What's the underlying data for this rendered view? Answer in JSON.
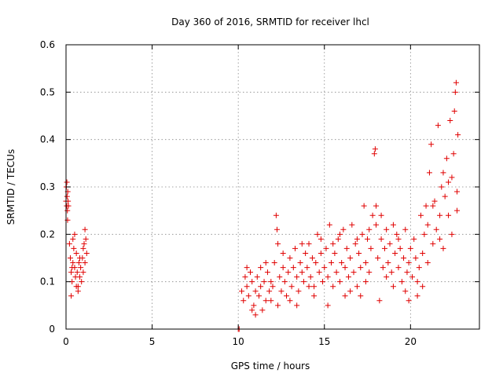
{
  "chart_data": {
    "type": "scatter",
    "title": "Day 360 of 2016, SRMTID for receiver lhcl",
    "xlabel": "GPS time / hours",
    "ylabel": "SRMTID / TECUs",
    "xlim": [
      0,
      24
    ],
    "ylim": [
      0,
      0.6
    ],
    "xticks": [
      0,
      5,
      10,
      15,
      20
    ],
    "xtick_labels": [
      "0",
      "5",
      "10",
      "15",
      "20"
    ],
    "yticks": [
      0,
      0.1,
      0.2,
      0.3,
      0.4,
      0.5,
      0.6
    ],
    "ytick_labels": [
      "0",
      "0.1",
      "0.2",
      "0.3",
      "0.4",
      "0.5",
      "0.6"
    ],
    "grid": true,
    "marker": "+",
    "series": [
      {
        "name": "SRMTID",
        "color": "#e00000",
        "points": [
          [
            0.0,
            0.27
          ],
          [
            0.02,
            0.3
          ],
          [
            0.04,
            0.26
          ],
          [
            0.06,
            0.28
          ],
          [
            0.08,
            0.25
          ],
          [
            0.1,
            0.29
          ],
          [
            0.12,
            0.27
          ],
          [
            0.14,
            0.26
          ],
          [
            0.05,
            0.31
          ],
          [
            0.09,
            0.23
          ],
          [
            0.2,
            0.18
          ],
          [
            0.25,
            0.15
          ],
          [
            0.3,
            0.12
          ],
          [
            0.35,
            0.1
          ],
          [
            0.4,
            0.14
          ],
          [
            0.45,
            0.17
          ],
          [
            0.5,
            0.13
          ],
          [
            0.55,
            0.11
          ],
          [
            0.6,
            0.16
          ],
          [
            0.65,
            0.12
          ],
          [
            0.7,
            0.09
          ],
          [
            0.75,
            0.14
          ],
          [
            0.8,
            0.11
          ],
          [
            0.85,
            0.13
          ],
          [
            0.9,
            0.1
          ],
          [
            0.95,
            0.15
          ],
          [
            1.0,
            0.12
          ],
          [
            1.05,
            0.18
          ],
          [
            1.1,
            0.21
          ],
          [
            1.15,
            0.19
          ],
          [
            1.2,
            0.16
          ],
          [
            0.3,
            0.07
          ],
          [
            0.5,
            0.2
          ],
          [
            0.7,
            0.08
          ],
          [
            1.0,
            0.17
          ],
          [
            0.4,
            0.19
          ],
          [
            0.6,
            0.09
          ],
          [
            0.8,
            0.15
          ],
          [
            1.1,
            0.14
          ],
          [
            0.35,
            0.13
          ],
          [
            10.0,
            0.0
          ],
          [
            10.05,
            0.0
          ],
          [
            10.2,
            0.08
          ],
          [
            10.3,
            0.06
          ],
          [
            10.4,
            0.11
          ],
          [
            10.5,
            0.09
          ],
          [
            10.6,
            0.07
          ],
          [
            10.7,
            0.12
          ],
          [
            10.8,
            0.1
          ],
          [
            10.9,
            0.05
          ],
          [
            11.0,
            0.08
          ],
          [
            11.1,
            0.11
          ],
          [
            11.2,
            0.07
          ],
          [
            11.3,
            0.09
          ],
          [
            11.4,
            0.04
          ],
          [
            11.5,
            0.1
          ],
          [
            11.6,
            0.06
          ],
          [
            11.7,
            0.12
          ],
          [
            11.8,
            0.08
          ],
          [
            11.9,
            0.1
          ],
          [
            12.0,
            0.09
          ],
          [
            12.1,
            0.14
          ],
          [
            12.2,
            0.24
          ],
          [
            12.25,
            0.21
          ],
          [
            12.3,
            0.18
          ],
          [
            12.4,
            0.11
          ],
          [
            12.5,
            0.08
          ],
          [
            12.6,
            0.13
          ],
          [
            12.7,
            0.1
          ],
          [
            12.8,
            0.07
          ],
          [
            12.9,
            0.12
          ],
          [
            13.0,
            0.15
          ],
          [
            13.1,
            0.09
          ],
          [
            13.2,
            0.13
          ],
          [
            13.3,
            0.17
          ],
          [
            13.4,
            0.11
          ],
          [
            13.5,
            0.08
          ],
          [
            13.6,
            0.14
          ],
          [
            13.7,
            0.12
          ],
          [
            13.8,
            0.1
          ],
          [
            13.9,
            0.16
          ],
          [
            14.0,
            0.13
          ],
          [
            14.1,
            0.18
          ],
          [
            14.2,
            0.11
          ],
          [
            14.3,
            0.15
          ],
          [
            14.4,
            0.09
          ],
          [
            14.5,
            0.14
          ],
          [
            14.6,
            0.2
          ],
          [
            14.7,
            0.12
          ],
          [
            14.8,
            0.16
          ],
          [
            14.9,
            0.1
          ],
          [
            15.0,
            0.13
          ],
          [
            15.1,
            0.17
          ],
          [
            15.2,
            0.11
          ],
          [
            15.3,
            0.22
          ],
          [
            15.4,
            0.14
          ],
          [
            15.5,
            0.09
          ],
          [
            15.6,
            0.16
          ],
          [
            15.7,
            0.12
          ],
          [
            15.8,
            0.19
          ],
          [
            15.9,
            0.1
          ],
          [
            16.0,
            0.14
          ],
          [
            16.1,
            0.21
          ],
          [
            16.2,
            0.13
          ],
          [
            16.3,
            0.17
          ],
          [
            16.4,
            0.11
          ],
          [
            16.5,
            0.15
          ],
          [
            16.6,
            0.22
          ],
          [
            16.7,
            0.12
          ],
          [
            16.8,
            0.18
          ],
          [
            16.9,
            0.09
          ],
          [
            17.0,
            0.16
          ],
          [
            17.1,
            0.13
          ],
          [
            17.2,
            0.2
          ],
          [
            17.3,
            0.26
          ],
          [
            17.4,
            0.14
          ],
          [
            17.5,
            0.19
          ],
          [
            17.6,
            0.12
          ],
          [
            17.7,
            0.17
          ],
          [
            17.8,
            0.24
          ],
          [
            17.9,
            0.37
          ],
          [
            17.95,
            0.38
          ],
          [
            18.0,
            0.22
          ],
          [
            18.1,
            0.15
          ],
          [
            18.2,
            0.06
          ],
          [
            18.3,
            0.19
          ],
          [
            18.4,
            0.13
          ],
          [
            18.5,
            0.17
          ],
          [
            18.6,
            0.21
          ],
          [
            18.7,
            0.14
          ],
          [
            18.8,
            0.18
          ],
          [
            18.9,
            0.12
          ],
          [
            19.0,
            0.22
          ],
          [
            19.1,
            0.16
          ],
          [
            19.2,
            0.2
          ],
          [
            19.3,
            0.13
          ],
          [
            19.4,
            0.17
          ],
          [
            19.5,
            0.1
          ],
          [
            19.6,
            0.15
          ],
          [
            19.7,
            0.08
          ],
          [
            19.8,
            0.12
          ],
          [
            19.9,
            0.14
          ],
          [
            20.0,
            0.17
          ],
          [
            20.1,
            0.11
          ],
          [
            20.2,
            0.19
          ],
          [
            20.3,
            0.15
          ],
          [
            20.4,
            0.07
          ],
          [
            20.5,
            0.13
          ],
          [
            20.6,
            0.24
          ],
          [
            20.7,
            0.16
          ],
          [
            20.8,
            0.2
          ],
          [
            20.9,
            0.26
          ],
          [
            21.0,
            0.22
          ],
          [
            21.1,
            0.33
          ],
          [
            21.2,
            0.39
          ],
          [
            21.3,
            0.18
          ],
          [
            21.4,
            0.27
          ],
          [
            21.5,
            0.21
          ],
          [
            21.6,
            0.43
          ],
          [
            21.7,
            0.19
          ],
          [
            21.8,
            0.3
          ],
          [
            21.9,
            0.17
          ],
          [
            22.0,
            0.28
          ],
          [
            22.1,
            0.36
          ],
          [
            22.2,
            0.24
          ],
          [
            22.3,
            0.44
          ],
          [
            22.4,
            0.32
          ],
          [
            22.5,
            0.37
          ],
          [
            22.6,
            0.5
          ],
          [
            22.65,
            0.52
          ],
          [
            22.7,
            0.29
          ],
          [
            22.75,
            0.41
          ],
          [
            10.5,
            0.13
          ],
          [
            11.0,
            0.03
          ],
          [
            11.6,
            0.14
          ],
          [
            12.3,
            0.05
          ],
          [
            13.0,
            0.06
          ],
          [
            13.7,
            0.18
          ],
          [
            14.4,
            0.07
          ],
          [
            15.2,
            0.05
          ],
          [
            15.9,
            0.2
          ],
          [
            16.5,
            0.08
          ],
          [
            17.1,
            0.07
          ],
          [
            17.6,
            0.21
          ],
          [
            18.3,
            0.24
          ],
          [
            19.0,
            0.09
          ],
          [
            19.7,
            0.21
          ],
          [
            20.4,
            0.1
          ],
          [
            21.0,
            0.14
          ],
          [
            21.7,
            0.24
          ],
          [
            22.4,
            0.2
          ],
          [
            22.7,
            0.25
          ],
          [
            10.8,
            0.04
          ],
          [
            11.3,
            0.13
          ],
          [
            11.9,
            0.06
          ],
          [
            12.6,
            0.16
          ],
          [
            13.4,
            0.05
          ],
          [
            14.1,
            0.09
          ],
          [
            14.8,
            0.19
          ],
          [
            15.5,
            0.18
          ],
          [
            16.2,
            0.07
          ],
          [
            16.9,
            0.19
          ],
          [
            17.4,
            0.1
          ],
          [
            18.0,
            0.26
          ],
          [
            18.6,
            0.11
          ],
          [
            19.3,
            0.19
          ],
          [
            19.9,
            0.06
          ],
          [
            20.7,
            0.09
          ],
          [
            21.3,
            0.26
          ],
          [
            21.9,
            0.33
          ],
          [
            22.2,
            0.31
          ],
          [
            22.55,
            0.46
          ]
        ]
      }
    ]
  }
}
